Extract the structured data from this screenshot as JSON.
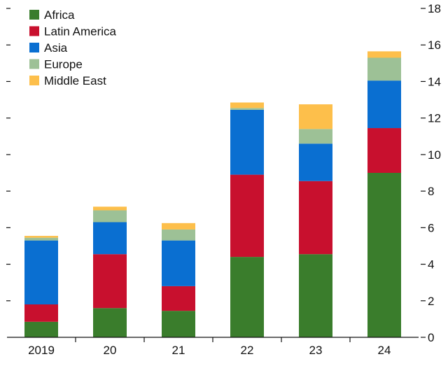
{
  "chart_data": {
    "type": "bar",
    "stacked": true,
    "categories": [
      "2019",
      "20",
      "21",
      "22",
      "23",
      "24"
    ],
    "series": [
      {
        "name": "Africa",
        "color": "#3a7d2c",
        "values": [
          0.85,
          1.6,
          1.45,
          4.4,
          4.55,
          9.0
        ]
      },
      {
        "name": "Latin America",
        "color": "#c8102e",
        "values": [
          0.95,
          2.95,
          1.35,
          4.5,
          4.0,
          2.45
        ]
      },
      {
        "name": "Asia",
        "color": "#0a6fd1",
        "values": [
          3.5,
          1.75,
          2.5,
          3.55,
          2.05,
          2.6
        ]
      },
      {
        "name": "Europe",
        "color": "#9dc196",
        "values": [
          0.15,
          0.65,
          0.6,
          0.1,
          0.8,
          1.25
        ]
      },
      {
        "name": "Middle East",
        "color": "#fdbf4b",
        "values": [
          0.1,
          0.2,
          0.35,
          0.3,
          1.35,
          0.35
        ]
      }
    ],
    "yaxis": {
      "ylim": [
        0,
        18
      ],
      "ticks": [
        0,
        2,
        4,
        6,
        8,
        10,
        12,
        14,
        16,
        18
      ],
      "tick_labels": [
        "0",
        "2",
        "4",
        "6",
        "8",
        "10",
        "12",
        "14",
        "16",
        "18"
      ],
      "side": "right"
    },
    "title": "",
    "xlabel": "",
    "ylabel": "",
    "legend_position": "top-left",
    "grid": false
  }
}
